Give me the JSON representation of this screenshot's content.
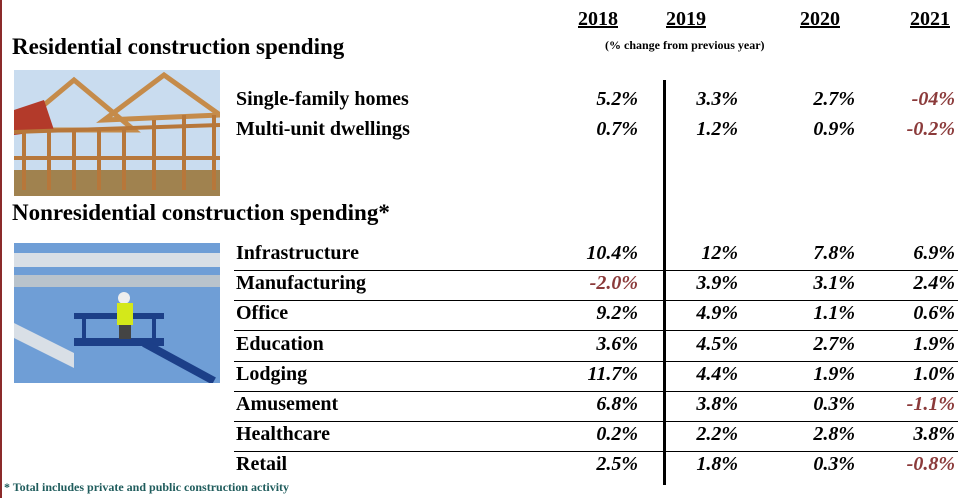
{
  "header": {
    "years": [
      "2018",
      "2019",
      "2020",
      "2021"
    ],
    "subtitle": "(% change from previous year)"
  },
  "residential": {
    "title": "Residential construction spending",
    "rows": [
      [
        "Single-family homes",
        "5.2%",
        "3.3%",
        "2.7%",
        "-04%"
      ],
      [
        "Multi-unit dwellings",
        "0.7%",
        "1.2%",
        "0.9%",
        "-0.2%"
      ]
    ]
  },
  "nonresidential": {
    "title": "Nonresidential construction spending*",
    "rows": [
      [
        "Infrastructure",
        "10.4%",
        "12%",
        "7.8%",
        "6.9%"
      ],
      [
        "Manufacturing",
        "-2.0%",
        "3.9%",
        "3.1%",
        "2.4%"
      ],
      [
        "Office",
        "9.2%",
        "4.9%",
        "1.1%",
        "0.6%"
      ],
      [
        "Education",
        "3.6%",
        "4.5%",
        "2.7%",
        "1.9%"
      ],
      [
        "Lodging",
        "11.7%",
        "4.4%",
        "1.9%",
        "1.0%"
      ],
      [
        "Amusement",
        "6.8%",
        "3.8%",
        "0.3%",
        "-1.1%"
      ],
      [
        "Healthcare",
        "0.2%",
        "2.2%",
        "2.8%",
        "3.8%"
      ],
      [
        "Retail",
        "2.5%",
        "1.8%",
        "0.3%",
        "-0.8%"
      ]
    ]
  },
  "footnote": "* Total includes private and public construction activity"
}
